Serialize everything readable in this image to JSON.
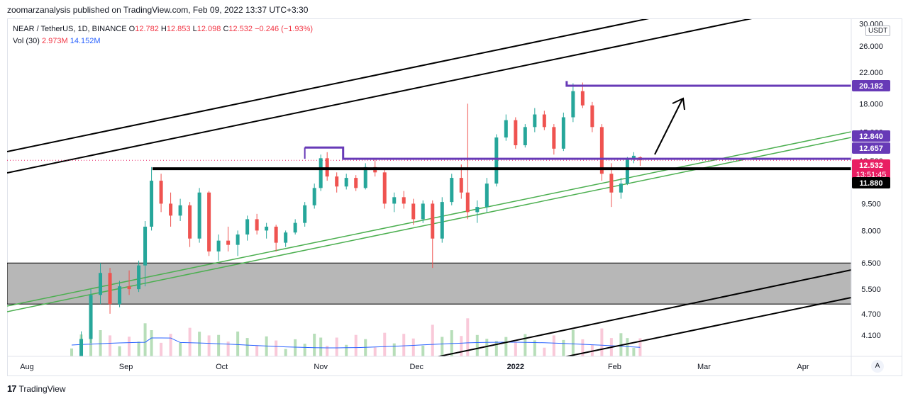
{
  "header": {
    "published": "zoomarzanalysis published on TradingView.com, Feb 09, 2022 13:37 UTC+3:30"
  },
  "legend": {
    "symbol": "NEAR / TetherUS, 1D, BINANCE",
    "o_label": "O",
    "o": "12.782",
    "h_label": "H",
    "h": "12.853",
    "l_label": "L",
    "l": "12.098",
    "c_label": "C",
    "c": "12.532",
    "change": "−0.246 (−1.93%)",
    "vol_label": "Vol (30)",
    "vol": "2.973M",
    "vol_ma": "14.152M"
  },
  "currency": "USDT",
  "auto_label": "A",
  "footer": {
    "brand": "TradingView",
    "icon": "tradingview-logo-icon"
  },
  "colors": {
    "up": "#26a69a",
    "down": "#ef5350",
    "purple": "#673ab7",
    "green_channel": "#4caf50",
    "price_label": "#e91e63",
    "black": "#000000",
    "zone": "#b7b7b7"
  },
  "chart_data": {
    "type": "candlestick",
    "scale": "log",
    "y_ticks": [
      "30.000",
      "26.000",
      "22.000",
      "18.000",
      "15.000",
      "12.500",
      "9.500",
      "8.000",
      "6.500",
      "5.500",
      "4.700",
      "4.100"
    ],
    "x_ticks": [
      "Aug",
      "Sep",
      "Oct",
      "Nov",
      "Dec",
      "2022",
      "Jan",
      "Feb",
      "Mar",
      "Apr"
    ],
    "price_labels": [
      {
        "value": "20.182",
        "color": "#673ab7"
      },
      {
        "value": "12.840",
        "color": "#673ab7"
      },
      {
        "value": "12.657",
        "color": "#673ab7"
      },
      {
        "value": "12.532",
        "sub": "13:51:45",
        "color": "#e91e63"
      },
      {
        "value": "11.880",
        "color": "#000000"
      }
    ],
    "levels": {
      "resistance_top": 20.182,
      "purple_level": 12.657,
      "black_level": 11.88,
      "zone": [
        5.0,
        6.5
      ]
    },
    "candles": [
      {
        "d": "2021-08-15",
        "o": 3.2,
        "h": 3.5,
        "l": 3.1,
        "c": 3.4
      },
      {
        "d": "2021-08-18",
        "o": 3.4,
        "h": 4.2,
        "l": 3.3,
        "c": 4.0
      },
      {
        "d": "2021-08-21",
        "o": 4.0,
        "h": 5.5,
        "l": 3.9,
        "c": 5.3
      },
      {
        "d": "2021-08-24",
        "o": 5.3,
        "h": 6.5,
        "l": 5.0,
        "c": 6.1
      },
      {
        "d": "2021-08-27",
        "o": 6.1,
        "h": 6.3,
        "l": 4.7,
        "c": 5.0
      },
      {
        "d": "2021-08-30",
        "o": 5.0,
        "h": 5.8,
        "l": 4.9,
        "c": 5.6
      },
      {
        "d": "2021-09-02",
        "o": 5.6,
        "h": 6.2,
        "l": 5.3,
        "c": 5.5
      },
      {
        "d": "2021-09-05",
        "o": 5.5,
        "h": 6.6,
        "l": 5.4,
        "c": 6.4
      },
      {
        "d": "2021-09-07",
        "o": 6.4,
        "h": 8.5,
        "l": 5.6,
        "c": 8.2
      },
      {
        "d": "2021-09-09",
        "o": 8.2,
        "h": 12.0,
        "l": 8.0,
        "c": 11.0
      },
      {
        "d": "2021-09-12",
        "o": 11.0,
        "h": 11.5,
        "l": 9.0,
        "c": 9.5
      },
      {
        "d": "2021-09-15",
        "o": 9.5,
        "h": 10.2,
        "l": 8.2,
        "c": 8.8
      },
      {
        "d": "2021-09-18",
        "o": 8.8,
        "h": 9.8,
        "l": 8.5,
        "c": 9.4
      },
      {
        "d": "2021-09-21",
        "o": 9.4,
        "h": 9.6,
        "l": 7.2,
        "c": 7.6
      },
      {
        "d": "2021-09-24",
        "o": 7.6,
        "h": 10.5,
        "l": 7.4,
        "c": 10.2
      },
      {
        "d": "2021-09-27",
        "o": 10.2,
        "h": 10.3,
        "l": 6.8,
        "c": 7.0
      },
      {
        "d": "2021-09-30",
        "o": 7.0,
        "h": 7.8,
        "l": 6.6,
        "c": 7.5
      },
      {
        "d": "2021-10-03",
        "o": 7.5,
        "h": 8.2,
        "l": 7.0,
        "c": 7.3
      },
      {
        "d": "2021-10-06",
        "o": 7.3,
        "h": 8.0,
        "l": 6.8,
        "c": 7.8
      },
      {
        "d": "2021-10-09",
        "o": 7.8,
        "h": 8.8,
        "l": 7.5,
        "c": 8.6
      },
      {
        "d": "2021-10-12",
        "o": 8.6,
        "h": 8.9,
        "l": 7.8,
        "c": 8.0
      },
      {
        "d": "2021-10-15",
        "o": 8.0,
        "h": 8.4,
        "l": 7.6,
        "c": 8.2
      },
      {
        "d": "2021-10-18",
        "o": 8.2,
        "h": 8.3,
        "l": 7.0,
        "c": 7.4
      },
      {
        "d": "2021-10-21",
        "o": 7.4,
        "h": 8.0,
        "l": 7.2,
        "c": 7.9
      },
      {
        "d": "2021-10-24",
        "o": 7.9,
        "h": 8.6,
        "l": 7.8,
        "c": 8.4
      },
      {
        "d": "2021-10-27",
        "o": 8.4,
        "h": 9.6,
        "l": 8.2,
        "c": 9.4
      },
      {
        "d": "2021-10-30",
        "o": 9.4,
        "h": 10.8,
        "l": 9.2,
        "c": 10.5
      },
      {
        "d": "2021-11-01",
        "o": 10.5,
        "h": 13.0,
        "l": 10.3,
        "c": 12.7
      },
      {
        "d": "2021-11-03",
        "o": 12.7,
        "h": 13.2,
        "l": 11.0,
        "c": 11.3
      },
      {
        "d": "2021-11-06",
        "o": 11.3,
        "h": 11.6,
        "l": 10.2,
        "c": 10.6
      },
      {
        "d": "2021-11-09",
        "o": 10.6,
        "h": 11.5,
        "l": 10.4,
        "c": 11.2
      },
      {
        "d": "2021-11-12",
        "o": 11.2,
        "h": 11.4,
        "l": 10.3,
        "c": 10.5
      },
      {
        "d": "2021-11-15",
        "o": 10.5,
        "h": 12.3,
        "l": 10.4,
        "c": 12.0
      },
      {
        "d": "2021-11-18",
        "o": 12.0,
        "h": 12.6,
        "l": 11.3,
        "c": 11.6
      },
      {
        "d": "2021-11-21",
        "o": 11.6,
        "h": 11.8,
        "l": 9.2,
        "c": 9.5
      },
      {
        "d": "2021-11-24",
        "o": 9.5,
        "h": 10.2,
        "l": 9.0,
        "c": 9.9
      },
      {
        "d": "2021-11-27",
        "o": 9.9,
        "h": 10.3,
        "l": 9.2,
        "c": 9.5
      },
      {
        "d": "2021-11-30",
        "o": 9.5,
        "h": 9.8,
        "l": 8.3,
        "c": 8.6
      },
      {
        "d": "2021-12-03",
        "o": 8.6,
        "h": 9.7,
        "l": 8.4,
        "c": 9.5
      },
      {
        "d": "2021-12-06",
        "o": 9.5,
        "h": 9.7,
        "l": 6.3,
        "c": 7.6
      },
      {
        "d": "2021-12-09",
        "o": 7.6,
        "h": 9.9,
        "l": 7.4,
        "c": 9.6
      },
      {
        "d": "2021-12-12",
        "o": 9.6,
        "h": 11.5,
        "l": 9.4,
        "c": 11.2
      },
      {
        "d": "2021-12-15",
        "o": 11.2,
        "h": 12.2,
        "l": 9.8,
        "c": 10.2
      },
      {
        "d": "2021-12-17",
        "o": 10.2,
        "h": 18.0,
        "l": 8.6,
        "c": 9.0
      },
      {
        "d": "2021-12-20",
        "o": 9.0,
        "h": 9.7,
        "l": 8.4,
        "c": 9.3
      },
      {
        "d": "2021-12-23",
        "o": 9.3,
        "h": 11.2,
        "l": 9.0,
        "c": 10.8
      },
      {
        "d": "2021-12-26",
        "o": 10.8,
        "h": 14.8,
        "l": 10.6,
        "c": 14.5
      },
      {
        "d": "2021-12-29",
        "o": 14.5,
        "h": 16.8,
        "l": 14.2,
        "c": 16.2
      },
      {
        "d": "2022-01-01",
        "o": 16.2,
        "h": 16.5,
        "l": 13.5,
        "c": 13.8
      },
      {
        "d": "2022-01-04",
        "o": 13.8,
        "h": 15.8,
        "l": 13.6,
        "c": 15.5
      },
      {
        "d": "2022-01-07",
        "o": 15.5,
        "h": 17.5,
        "l": 15.0,
        "c": 16.8
      },
      {
        "d": "2022-01-10",
        "o": 16.8,
        "h": 17.2,
        "l": 15.2,
        "c": 15.5
      },
      {
        "d": "2022-01-13",
        "o": 15.5,
        "h": 15.8,
        "l": 13.0,
        "c": 13.5
      },
      {
        "d": "2022-01-16",
        "o": 13.5,
        "h": 17.0,
        "l": 13.3,
        "c": 16.5
      },
      {
        "d": "2022-01-19",
        "o": 16.5,
        "h": 20.5,
        "l": 16.0,
        "c": 19.5
      },
      {
        "d": "2022-01-22",
        "o": 19.5,
        "h": 20.6,
        "l": 17.5,
        "c": 17.8
      },
      {
        "d": "2022-01-25",
        "o": 17.8,
        "h": 18.2,
        "l": 15.0,
        "c": 15.5
      },
      {
        "d": "2022-01-28",
        "o": 15.5,
        "h": 15.8,
        "l": 11.0,
        "c": 11.5
      },
      {
        "d": "2022-01-31",
        "o": 11.5,
        "h": 12.3,
        "l": 9.3,
        "c": 10.2
      },
      {
        "d": "2022-02-03",
        "o": 10.2,
        "h": 11.2,
        "l": 9.8,
        "c": 10.8
      },
      {
        "d": "2022-02-05",
        "o": 10.8,
        "h": 12.8,
        "l": 10.7,
        "c": 12.6
      },
      {
        "d": "2022-02-07",
        "o": 12.6,
        "h": 13.2,
        "l": 12.3,
        "c": 12.9
      },
      {
        "d": "2022-02-09",
        "o": 12.782,
        "h": 12.853,
        "l": 12.098,
        "c": 12.532
      }
    ]
  }
}
